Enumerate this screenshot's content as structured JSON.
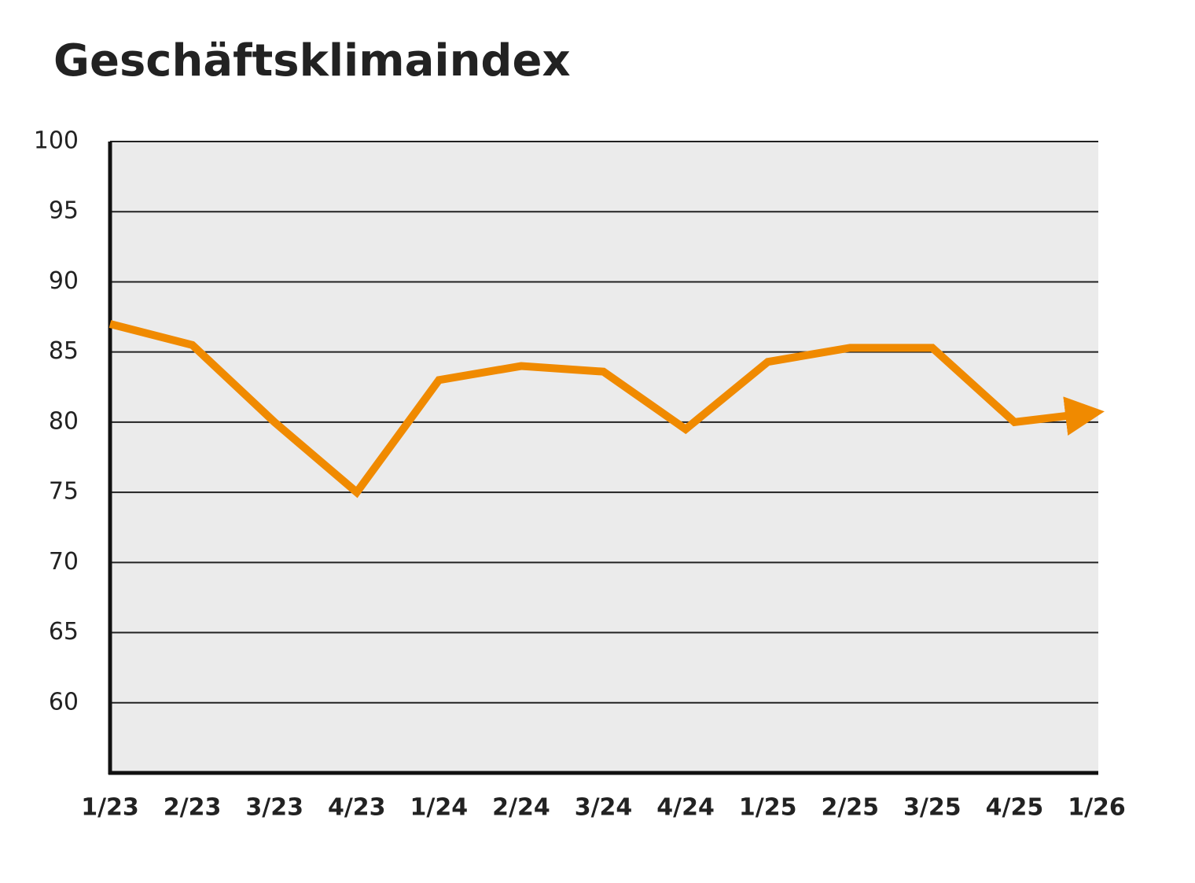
{
  "chart_data": {
    "type": "line",
    "title": "Geschäftsklimaindex",
    "categories": [
      "1/23",
      "2/23",
      "3/23",
      "4/23",
      "1/24",
      "2/24",
      "3/24",
      "4/24",
      "1/25",
      "2/25",
      "3/25",
      "4/25",
      "1/26"
    ],
    "values": [
      87,
      85.5,
      80,
      75,
      83,
      84,
      83.6,
      79.5,
      84.3,
      85.3,
      85.3,
      80,
      80.7
    ],
    "color": "#f08a00",
    "ylim": [
      55,
      100
    ],
    "yticks": [
      60,
      65,
      70,
      75,
      80,
      85,
      90,
      95,
      100
    ],
    "grid": true
  }
}
